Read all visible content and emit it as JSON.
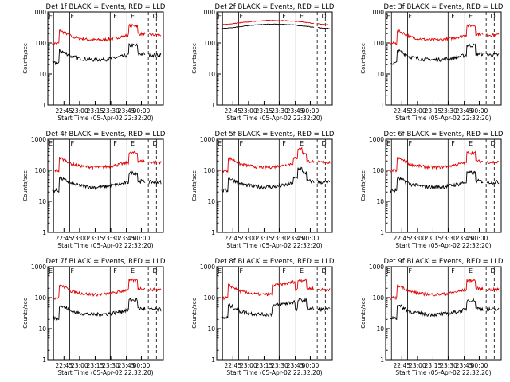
{
  "colors": {
    "events": "#000000",
    "lld": "#e00000",
    "axes": "#000000",
    "background": "#ffffff"
  },
  "common": {
    "ylabel": "Counts/sec",
    "xlabel": "Start Time (05-Apr-02 22:32:20)",
    "x_ticks": [
      "22:45",
      "23:00",
      "23:15",
      "23:30",
      "23:45",
      "00:00"
    ],
    "y_ticks": [
      "1",
      "10",
      "100",
      "1000"
    ],
    "markers": [
      "E",
      "F",
      "F",
      "E",
      "D"
    ]
  },
  "chart_data": [
    {
      "type": "line",
      "title": "Det 1f BLACK = Events, RED = LLD",
      "y_scale": "log",
      "ylim": [
        1,
        1000
      ],
      "shape": "a"
    },
    {
      "type": "line",
      "title": "Det 2f BLACK = Events, RED = LLD",
      "y_scale": "log",
      "ylim": [
        1,
        1000
      ],
      "shape": "flat"
    },
    {
      "type": "line",
      "title": "Det 3f BLACK = Events, RED = LLD",
      "y_scale": "log",
      "ylim": [
        1,
        1000
      ],
      "shape": "a"
    },
    {
      "type": "line",
      "title": "Det 4f BLACK = Events, RED = LLD",
      "y_scale": "log",
      "ylim": [
        1,
        1000
      ],
      "shape": "a"
    },
    {
      "type": "line",
      "title": "Det 5f BLACK = Events, RED = LLD",
      "y_scale": "log",
      "ylim": [
        1,
        1000
      ],
      "shape": "b"
    },
    {
      "type": "line",
      "title": "Det 6f BLACK = Events, RED = LLD",
      "y_scale": "log",
      "ylim": [
        1,
        1000
      ],
      "shape": "a"
    },
    {
      "type": "line",
      "title": "Det 7f BLACK = Events, RED = LLD",
      "y_scale": "log",
      "ylim": [
        1,
        1000
      ],
      "shape": "a"
    },
    {
      "type": "line",
      "title": "Det 8f BLACK = Events, RED = LLD",
      "y_scale": "log",
      "ylim": [
        1,
        1000
      ],
      "shape": "c"
    },
    {
      "type": "line",
      "title": "Det 9f BLACK = Events, RED = LLD",
      "y_scale": "log",
      "ylim": [
        1,
        1000
      ],
      "shape": "a"
    }
  ]
}
